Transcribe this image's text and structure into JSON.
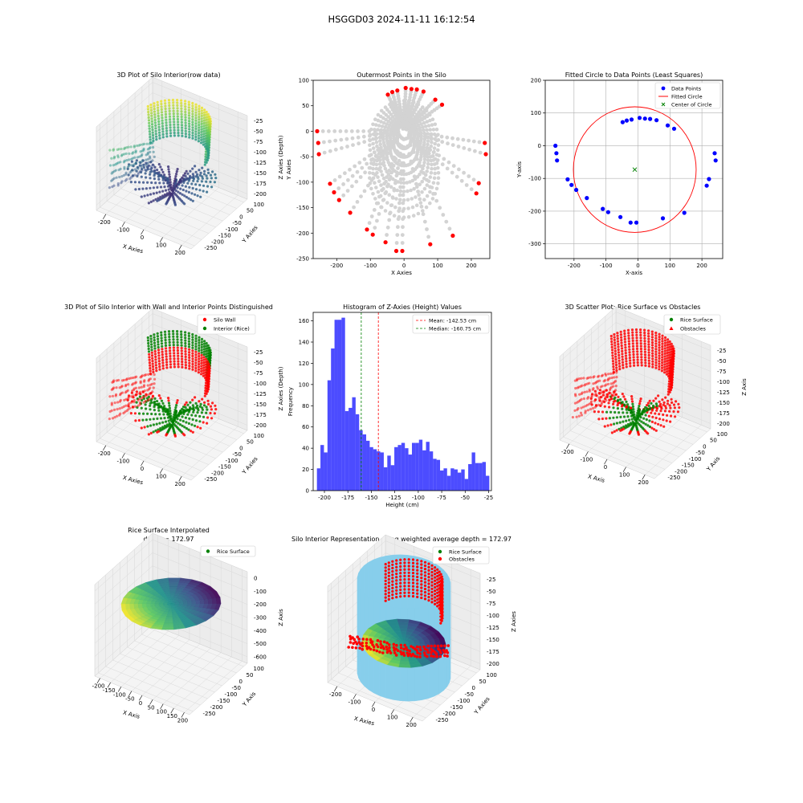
{
  "figure": {
    "suptitle": "HSGGD03 2024-11-11 16:12:54"
  },
  "chart_data": [
    {
      "id": "plot3d_raw",
      "type": "scatter3d",
      "title": "3D Plot of Silo Interior(row data)",
      "xlabel": "X Axies",
      "ylabel": "Y Axies",
      "zlabel": "Z Axies (Depth)",
      "x_ticks": [
        "-200",
        "-100",
        "0",
        "100",
        "200"
      ],
      "y_ticks": [
        "100",
        "50",
        "0",
        "-50",
        "-100",
        "-150",
        "-200",
        "-250"
      ],
      "z_ticks": [
        "-25",
        "-50",
        "-75",
        "-100",
        "-125",
        "-150",
        "-175",
        "-200"
      ],
      "colormap": "viridis"
    },
    {
      "id": "outermost",
      "type": "scatter",
      "title": "Outermost Points in the Silo",
      "xlabel": "X Axies",
      "ylabel": "Y Axies",
      "xlim": [
        -270,
        255
      ],
      "ylim": [
        -250,
        100
      ],
      "x_ticks": [
        -200,
        -100,
        0,
        100,
        200
      ],
      "y_ticks": [
        100,
        50,
        0,
        -50,
        -100,
        -150,
        -200,
        -250
      ],
      "series": [
        {
          "color": "#d3d3d3",
          "description": "all scan points (radial fan)"
        },
        {
          "color": "#ff0000",
          "points": [
            [
              -258,
              0
            ],
            [
              -255,
              -23
            ],
            [
              -253,
              -45
            ],
            [
              -220,
              -103
            ],
            [
              -208,
              -120
            ],
            [
              -193,
              -135
            ],
            [
              -160,
              -160
            ],
            [
              -110,
              -193
            ],
            [
              -93,
              -203
            ],
            [
              -55,
              -218
            ],
            [
              -23,
              -235
            ],
            [
              -5,
              -235
            ],
            [
              78,
              -222
            ],
            [
              145,
              -205
            ],
            [
              215,
              -122
            ],
            [
              222,
              -102
            ],
            [
              240,
              -23
            ],
            [
              243,
              -45
            ],
            [
              -48,
              72
            ],
            [
              -35,
              77
            ],
            [
              -20,
              80
            ],
            [
              5,
              85
            ],
            [
              22,
              83
            ],
            [
              38,
              82
            ],
            [
              58,
              78
            ],
            [
              93,
              62
            ],
            [
              113,
              52
            ]
          ]
        }
      ]
    },
    {
      "id": "fitted_circle",
      "type": "scatter",
      "title": "Fitted Circle to Data Points (Least Squares)",
      "xlabel": "X-axis",
      "ylabel": "Y-axis",
      "xlim": [
        -290,
        265
      ],
      "ylim": [
        -345,
        200
      ],
      "x_ticks": [
        -200,
        -100,
        0,
        100,
        200
      ],
      "y_ticks": [
        200,
        100,
        0,
        -100,
        -200,
        -300
      ],
      "grid": true,
      "legend": [
        "Data Points",
        "Fitted Circle",
        "Center of Circle"
      ],
      "legend_position": "top-right",
      "circle": {
        "cx": -10,
        "cy": -73,
        "r": 192
      },
      "points": [
        [
          -258,
          0
        ],
        [
          -255,
          -23
        ],
        [
          -253,
          -45
        ],
        [
          -220,
          -103
        ],
        [
          -208,
          -120
        ],
        [
          -193,
          -135
        ],
        [
          -160,
          -160
        ],
        [
          -110,
          -193
        ],
        [
          -93,
          -203
        ],
        [
          -55,
          -218
        ],
        [
          -23,
          -235
        ],
        [
          -5,
          -235
        ],
        [
          78,
          -222
        ],
        [
          145,
          -205
        ],
        [
          215,
          -122
        ],
        [
          222,
          -102
        ],
        [
          240,
          -23
        ],
        [
          243,
          -45
        ],
        [
          -48,
          72
        ],
        [
          -35,
          77
        ],
        [
          -20,
          80
        ],
        [
          5,
          85
        ],
        [
          22,
          83
        ],
        [
          38,
          82
        ],
        [
          58,
          78
        ],
        [
          93,
          62
        ],
        [
          113,
          52
        ]
      ],
      "colors": {
        "points": "#0000ff",
        "circle": "#ff0000",
        "center": "#008000"
      }
    },
    {
      "id": "plot3d_wall",
      "type": "scatter3d",
      "title": "3D Plot of Silo Interior with Wall and Interior Points Distinguished",
      "xlabel": "X Axies",
      "ylabel": "Y Axies",
      "zlabel": "Z Axies (Depth)",
      "x_ticks": [
        "-200",
        "-100",
        "0",
        "100",
        "200"
      ],
      "y_ticks": [
        "100",
        "50",
        "0",
        "-50",
        "-100",
        "-150",
        "-200",
        "-250"
      ],
      "z_ticks": [
        "-25",
        "-50",
        "-75",
        "-100",
        "-125",
        "-150",
        "-175",
        "-200"
      ],
      "legend": [
        "Silo Wall",
        "Interior (Rice)"
      ],
      "legend_position": "top-right"
    },
    {
      "id": "histogram",
      "type": "bar",
      "title": "Histogram of Z-Axies (Height) Values",
      "xlabel": "Height (cm)",
      "ylabel": "Frequency",
      "xlim": [
        -212,
        -22
      ],
      "ylim": [
        0,
        168
      ],
      "x_ticks": [
        -200,
        -175,
        -150,
        -125,
        -100,
        -75,
        -50,
        -25
      ],
      "y_ticks": [
        0,
        20,
        40,
        60,
        80,
        100,
        120,
        140,
        160
      ],
      "bin_start": -208,
      "bin_width": 3.75,
      "values": [
        21,
        43,
        36,
        104,
        134,
        161,
        161,
        163,
        75,
        78,
        88,
        72,
        57,
        53,
        47,
        41,
        39,
        37,
        36,
        22,
        33,
        24,
        41,
        43,
        45,
        40,
        34,
        45,
        45,
        48,
        38,
        46,
        37,
        30,
        29,
        19,
        21,
        14,
        21,
        20,
        17,
        20,
        11,
        25,
        36,
        26,
        26,
        27,
        14
      ],
      "mean": -142.53,
      "median": -160.75,
      "legend": [
        "Mean: -142.53 cm",
        "Median: -160.75 cm"
      ],
      "legend_position": "top-right",
      "colors": {
        "bars": "#0000ff",
        "mean": "#ff0000",
        "median": "#008000"
      }
    },
    {
      "id": "plot3d_rice",
      "type": "scatter3d",
      "title": "3D Scatter Plot: Rice Surface vs Obstacles",
      "xlabel": "X Axis",
      "ylabel": "Y Axis",
      "zlabel": "Z Axis",
      "x_ticks": [
        "-200",
        "-100",
        "0",
        "100",
        "200"
      ],
      "y_ticks": [
        "100",
        "50",
        "0",
        "-50",
        "-100",
        "-150",
        "-200",
        "-250"
      ],
      "z_ticks": [
        "-25",
        "-50",
        "-75",
        "-100",
        "-125",
        "-150",
        "-175",
        "-200"
      ],
      "legend": [
        "Rice Surface",
        "Obstacles"
      ],
      "legend_position": "top-right"
    },
    {
      "id": "plot3d_interp",
      "type": "surface3d",
      "title": "Rice Surface Interpolated",
      "subtitle": "depth = 172.97",
      "xlabel": "X Axis",
      "ylabel": "Y Axis",
      "zlabel": "Z Axis",
      "x_ticks": [
        "-200",
        "-150",
        "-100",
        "-50",
        "0",
        "50",
        "100",
        "150",
        "200"
      ],
      "y_ticks": [
        "100",
        "50",
        "0",
        "-50",
        "-100",
        "-150",
        "-200",
        "-250"
      ],
      "z_ticks": [
        "0",
        "-100",
        "-200",
        "-300",
        "-400",
        "-500",
        "-600"
      ],
      "legend": [
        "Rice Surface"
      ],
      "legend_position": "top-right"
    },
    {
      "id": "plot3d_weighted",
      "type": "scatter3d",
      "title": "Silo Interior Representation using weighted average depth = 172.97",
      "xlabel": "X Axies",
      "ylabel": "Y Axies",
      "zlabel": "Z Axies",
      "x_ticks": [
        "-200",
        "-100",
        "0",
        "100",
        "200"
      ],
      "y_ticks": [
        "100",
        "50",
        "0",
        "-50",
        "-100",
        "-150",
        "-200",
        "-250"
      ],
      "z_ticks": [
        "-25",
        "-50",
        "-75",
        "-100",
        "-125",
        "-150",
        "-175",
        "-200"
      ],
      "legend": [
        "Rice Surface",
        "Obstacles"
      ],
      "legend_position": "top-right"
    }
  ]
}
